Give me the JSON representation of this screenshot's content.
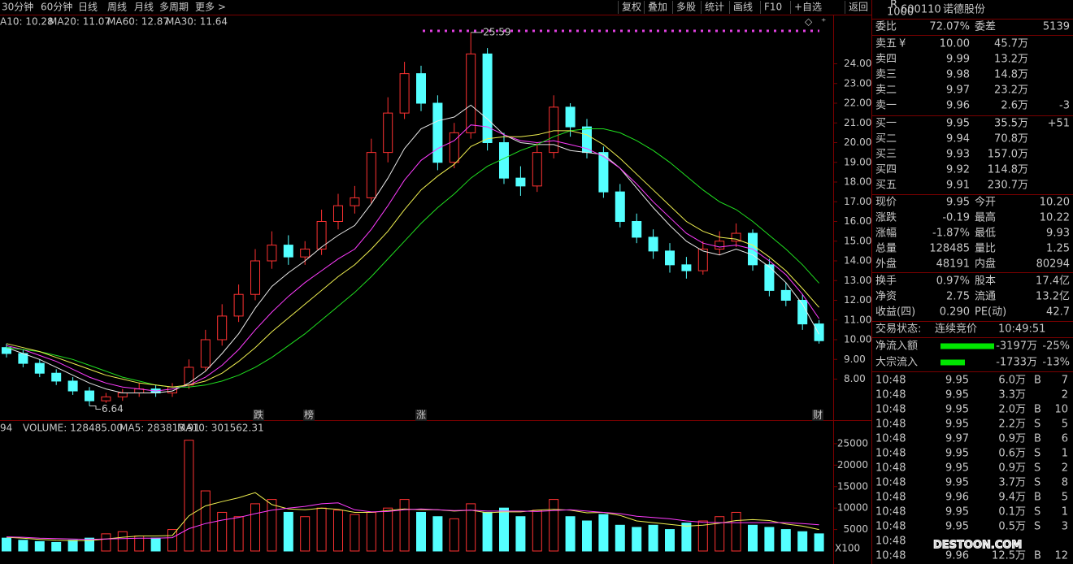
{
  "toolbar": {
    "periods": [
      "30分钟",
      "60分钟",
      "日线",
      "周线",
      "月线",
      "多周期",
      "更多 >"
    ],
    "actions": [
      "复权",
      "叠加",
      "多股",
      "统计",
      "画线",
      "F10",
      "+自选",
      "返回"
    ]
  },
  "chart_data": [
    {
      "type": "candlestick",
      "up_color": "#ff3232",
      "down_color": "#54ffff",
      "open": [
        9.6,
        9.3,
        8.8,
        8.3,
        7.9,
        7.4,
        6.9,
        7.1,
        7.3,
        7.5,
        7.3,
        7.7,
        8.6,
        10.0,
        11.2,
        12.3,
        14.0,
        14.8,
        14.2,
        14.6,
        16.0,
        16.8,
        17.2,
        19.5,
        21.5,
        23.5,
        22.0,
        19.0,
        20.5,
        24.5,
        20.0,
        18.2,
        17.8,
        19.5,
        21.8,
        20.8,
        19.5,
        17.5,
        16.0,
        15.2,
        14.5,
        13.8,
        13.5,
        14.6,
        15.0,
        15.4,
        13.8,
        12.5,
        12.0,
        10.8
      ],
      "high": [
        9.8,
        9.5,
        9.0,
        8.5,
        8.1,
        7.6,
        7.3,
        7.5,
        7.8,
        7.7,
        7.8,
        9.0,
        10.5,
        11.8,
        12.8,
        14.6,
        15.5,
        15.3,
        15.0,
        16.6,
        17.4,
        17.8,
        20.2,
        22.3,
        24.1,
        23.9,
        22.4,
        21.0,
        25.59,
        24.8,
        20.5,
        18.8,
        20.0,
        22.4,
        22.0,
        21.2,
        19.8,
        17.9,
        16.4,
        15.6,
        14.9,
        14.2,
        15.0,
        15.5,
        15.9,
        15.6,
        14.1,
        12.9,
        12.3,
        11.0
      ],
      "low": [
        9.1,
        8.6,
        8.1,
        7.7,
        7.2,
        6.64,
        6.8,
        6.9,
        7.1,
        7.1,
        7.1,
        7.5,
        8.4,
        9.7,
        10.9,
        12.0,
        13.6,
        13.8,
        13.8,
        14.3,
        15.6,
        16.4,
        16.9,
        19.0,
        21.2,
        21.6,
        18.6,
        18.7,
        20.2,
        19.6,
        17.9,
        17.3,
        17.5,
        19.2,
        20.3,
        19.2,
        17.2,
        15.7,
        14.9,
        14.1,
        13.4,
        13.1,
        13.3,
        14.3,
        14.7,
        13.5,
        12.2,
        11.7,
        10.5,
        9.8
      ],
      "close": [
        9.3,
        8.8,
        8.3,
        7.9,
        7.4,
        6.9,
        7.1,
        7.3,
        7.5,
        7.3,
        7.6,
        8.6,
        10.0,
        11.2,
        12.3,
        14.0,
        14.8,
        14.2,
        14.6,
        16.0,
        16.8,
        17.2,
        19.5,
        21.5,
        23.5,
        22.0,
        19.0,
        20.5,
        24.5,
        20.0,
        18.2,
        17.8,
        19.5,
        21.8,
        20.8,
        19.5,
        17.5,
        16.0,
        15.2,
        14.5,
        13.8,
        13.5,
        14.6,
        15.0,
        15.4,
        13.8,
        12.5,
        12.0,
        10.8,
        9.95
      ],
      "series": [
        {
          "name": "A10: 10.28",
          "color": "#e8e8e8",
          "values": [
            9.6,
            9.3,
            9.0,
            8.6,
            8.2,
            7.8,
            7.5,
            7.3,
            7.3,
            7.3,
            7.4,
            7.8,
            8.4,
            9.3,
            10.3,
            11.6,
            12.7,
            13.4,
            14.0,
            14.7,
            15.3,
            15.8,
            16.9,
            18.2,
            19.7,
            20.7,
            21.1,
            21.3,
            21.9,
            21.2,
            20.4,
            20.0,
            19.9,
            19.9,
            19.6,
            19.5,
            19.4,
            18.7,
            17.7,
            16.7,
            15.8,
            15.0,
            14.5,
            14.3,
            14.6,
            14.3,
            13.7,
            12.9,
            11.8,
            10.28
          ]
        },
        {
          "name": "MA20: 11.07",
          "color": "#ff3cff",
          "values": [
            9.7,
            9.5,
            9.2,
            8.9,
            8.5,
            8.1,
            7.8,
            7.6,
            7.5,
            7.4,
            7.5,
            7.7,
            8.1,
            8.7,
            9.5,
            10.5,
            11.4,
            12.2,
            12.9,
            13.5,
            14.1,
            14.6,
            15.6,
            16.8,
            18.1,
            19.1,
            19.7,
            20.1,
            20.9,
            20.8,
            20.4,
            20.1,
            20.0,
            20.1,
            19.9,
            19.7,
            19.3,
            18.7,
            17.9,
            17.0,
            16.2,
            15.4,
            14.9,
            14.7,
            14.8,
            14.6,
            14.0,
            13.3,
            12.3,
            11.07
          ]
        },
        {
          "name": "MA60: 12.87",
          "color": "#20e020",
          "values": [
            9.6,
            9.5,
            9.4,
            9.2,
            9.0,
            8.7,
            8.4,
            8.1,
            7.9,
            7.7,
            7.6,
            7.6,
            7.7,
            7.9,
            8.2,
            8.6,
            9.1,
            9.7,
            10.3,
            11.0,
            11.7,
            12.4,
            13.2,
            14.1,
            15.0,
            15.9,
            16.7,
            17.4,
            18.2,
            18.8,
            19.2,
            19.6,
            19.9,
            20.3,
            20.6,
            20.7,
            20.7,
            20.5,
            20.1,
            19.6,
            19.0,
            18.3,
            17.6,
            17.0,
            16.6,
            16.0,
            15.3,
            14.6,
            13.8,
            12.87
          ]
        },
        {
          "name": "MA30: 11.64",
          "color": "#f0f050",
          "values": [
            9.8,
            9.6,
            9.4,
            9.1,
            8.8,
            8.5,
            8.2,
            8.0,
            7.8,
            7.7,
            7.6,
            7.7,
            7.9,
            8.3,
            8.9,
            9.6,
            10.4,
            11.1,
            11.8,
            12.5,
            13.2,
            13.8,
            14.6,
            15.5,
            16.6,
            17.6,
            18.3,
            18.9,
            19.8,
            20.2,
            20.3,
            20.3,
            20.4,
            20.6,
            20.6,
            20.4,
            19.9,
            19.2,
            18.4,
            17.6,
            16.8,
            16.0,
            15.5,
            15.2,
            15.1,
            14.8,
            14.2,
            13.5,
            12.6,
            11.64
          ]
        }
      ],
      "ylim": [
        6,
        26
      ],
      "yticks": [
        {
          "value": 8,
          "label": "8.00"
        },
        {
          "value": 9,
          "label": "9.00"
        },
        {
          "value": 10,
          "label": "10.00"
        },
        {
          "value": 11,
          "label": "11.00"
        },
        {
          "value": 12,
          "label": "12.00"
        },
        {
          "value": 13,
          "label": "13.00"
        },
        {
          "value": 14,
          "label": "14.00"
        },
        {
          "value": 15,
          "label": "15.00"
        },
        {
          "value": 16,
          "label": "16.00"
        },
        {
          "value": 17,
          "label": "17.00"
        },
        {
          "value": 18,
          "label": "18.00"
        },
        {
          "value": 19,
          "label": "19.00"
        },
        {
          "value": 20,
          "label": "20.00"
        },
        {
          "value": 21,
          "label": "21.00"
        },
        {
          "value": 22,
          "label": "22.00"
        },
        {
          "value": 23,
          "label": "23.00"
        },
        {
          "value": 24,
          "label": "24.00"
        }
      ],
      "annotations": [
        25.59,
        6.64
      ],
      "markers": [
        "跌",
        "榜",
        "涨",
        "财"
      ]
    },
    {
      "type": "bar",
      "header": [
        "94",
        "VOLUME: 128485.00"
      ],
      "values": [
        3000,
        2500,
        2200,
        2000,
        2500,
        3000,
        4000,
        4500,
        3500,
        3000,
        5000,
        25800,
        14000,
        9000,
        8000,
        11000,
        12000,
        9000,
        8000,
        10000,
        9500,
        8500,
        9000,
        10000,
        12000,
        9000,
        8000,
        7500,
        11000,
        9000,
        10000,
        8000,
        9500,
        12000,
        8000,
        7000,
        8500,
        6000,
        5500,
        6000,
        5000,
        6500,
        7000,
        8000,
        9000,
        6000,
        5500,
        5000,
        4500,
        4000
      ],
      "series": [
        {
          "name": "MA5: 283813.91",
          "color": "#f0f050",
          "values": [
            3200,
            3000,
            2700,
            2500,
            2400,
            2400,
            2800,
            3200,
            3500,
            3500,
            3600,
            8200,
            10500,
            11500,
            12400,
            13600,
            10800,
            9800,
            9600,
            10000,
            9700,
            9000,
            9000,
            9400,
            9800,
            9600,
            9600,
            9300,
            9500,
            8900,
            9100,
            9100,
            9500,
            9700,
            9500,
            8900,
            9000,
            8300,
            7000,
            6600,
            6200,
            5800,
            6000,
            6500,
            7100,
            7300,
            7100,
            6300,
            5800,
            5000
          ]
        },
        {
          "name": "MA10: 301562.31",
          "color": "#ff3cff",
          "values": [
            3300,
            3200,
            3000,
            2900,
            2800,
            2700,
            2800,
            2900,
            3000,
            3000,
            3100,
            5200,
            6400,
            7200,
            7800,
            8700,
            9500,
            10000,
            10400,
            11000,
            11200,
            9600,
            9100,
            9200,
            9600,
            9800,
            9600,
            9400,
            9500,
            9300,
            9300,
            9300,
            9200,
            9400,
            9600,
            9300,
            9000,
            8700,
            8100,
            7800,
            7500,
            7000,
            6700,
            6600,
            6600,
            6600,
            6600,
            6600,
            6400,
            6100
          ]
        }
      ],
      "ylim": [
        0,
        26500
      ],
      "yticks": [
        5000,
        10000,
        15000,
        20000,
        25000
      ],
      "unit_label": "X100"
    }
  ],
  "panel": {
    "badge": [
      "R",
      "1000"
    ],
    "code": "600110",
    "name": "诺德股份",
    "currency": "¥",
    "ratio": [
      "委比",
      "72.07%",
      "委差",
      "5139"
    ],
    "asks": [
      [
        "卖五",
        "10.00",
        "45.7万"
      ],
      [
        "卖四",
        "9.99",
        "13.2万"
      ],
      [
        "卖三",
        "9.98",
        "14.8万"
      ],
      [
        "卖二",
        "9.97",
        "23.2万"
      ],
      [
        "卖一",
        "9.96",
        "2.6万",
        "-3"
      ]
    ],
    "bids": [
      [
        "买一",
        "9.95",
        "35.5万",
        "+51"
      ],
      [
        "买二",
        "9.94",
        "70.8万"
      ],
      [
        "买三",
        "9.93",
        "157.0万"
      ],
      [
        "买四",
        "9.92",
        "114.8万"
      ],
      [
        "买五",
        "9.91",
        "230.7万"
      ]
    ],
    "quotes": [
      [
        "现价",
        "9.95",
        "今开",
        "10.20"
      ],
      [
        "涨跌",
        "-0.19",
        "最高",
        "10.22"
      ],
      [
        "涨幅",
        "-1.87%",
        "最低",
        "9.93"
      ],
      [
        "总量",
        "128485",
        "量比",
        "1.25"
      ],
      [
        "外盘",
        "48191",
        "内盘",
        "80294"
      ]
    ],
    "stats": [
      [
        "换手",
        "0.97%",
        "股本",
        "17.4亿"
      ],
      [
        "净资",
        "2.75",
        "流通",
        "13.2亿"
      ],
      [
        "收益(四)",
        "0.290",
        "PE(动)",
        "42.7"
      ]
    ],
    "status": [
      "交易状态:",
      "连续竞价",
      "10:49:51"
    ],
    "flows": [
      [
        "净流入额",
        "-3197万",
        "-25%"
      ],
      [
        "大宗流入",
        "-1733万",
        "-13%"
      ]
    ],
    "trades": [
      [
        "10:48",
        "9.95",
        "6.0万",
        "B",
        "7"
      ],
      [
        "10:48",
        "9.95",
        "3.3万",
        "2"
      ],
      [
        "10:48",
        "9.95",
        "2.0万",
        "B",
        "10"
      ],
      [
        "10:48",
        "9.95",
        "2.2万",
        "S",
        "5"
      ],
      [
        "10:48",
        "9.97",
        "0.9万",
        "B",
        "6"
      ],
      [
        "10:48",
        "9.95",
        "0.6万",
        "S",
        "1"
      ],
      [
        "10:48",
        "9.95",
        "0.9万",
        "S",
        "2"
      ],
      [
        "10:48",
        "9.95",
        "3.7万",
        "S",
        "8"
      ],
      [
        "10:48",
        "9.96",
        "9.4万",
        "B",
        "5"
      ],
      [
        "10:48",
        "9.95",
        "0.1万",
        "S",
        "1"
      ],
      [
        "10:48",
        "9.95",
        "0.5万",
        "S",
        "3"
      ],
      [
        "10:48"
      ],
      [
        "10:48",
        "9.96",
        "12.5万",
        "B",
        "12"
      ]
    ],
    "watermark": "DESTOON.COM"
  }
}
